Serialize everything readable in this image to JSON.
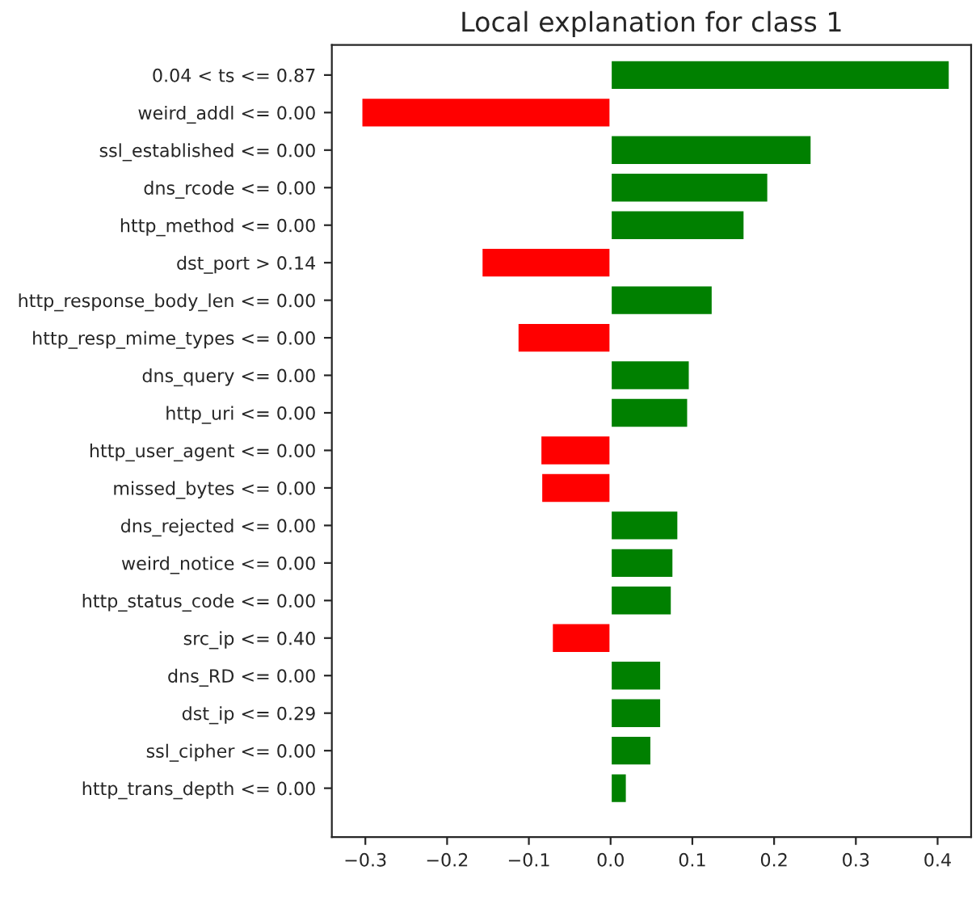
{
  "chart_data": {
    "type": "bar",
    "orientation": "horizontal",
    "title": "Local explanation for class 1",
    "categories": [
      "0.04 < ts <= 0.87",
      "weird_addl <= 0.00",
      "ssl_established <= 0.00",
      "dns_rcode <= 0.00",
      "http_method <= 0.00",
      "dst_port > 0.14",
      "http_response_body_len <= 0.00",
      "http_resp_mime_types <= 0.00",
      "dns_query <= 0.00",
      "http_uri <= 0.00",
      "http_user_agent <= 0.00",
      "missed_bytes <= 0.00",
      "dns_rejected <= 0.00",
      "weird_notice <= 0.00",
      "http_status_code <= 0.00",
      "src_ip <= 0.40",
      "dns_RD <= 0.00",
      "dst_ip <= 0.29",
      "ssl_cipher <= 0.00",
      "http_trans_depth <= 0.00"
    ],
    "values": [
      0.415,
      -0.305,
      0.246,
      0.193,
      0.164,
      -0.158,
      0.125,
      -0.114,
      0.097,
      0.095,
      -0.086,
      -0.085,
      0.083,
      0.077,
      0.075,
      -0.072,
      0.062,
      0.062,
      0.05,
      0.02
    ],
    "colors": [
      "#008000",
      "#ff0000",
      "#008000",
      "#008000",
      "#008000",
      "#ff0000",
      "#008000",
      "#ff0000",
      "#008000",
      "#008000",
      "#ff0000",
      "#ff0000",
      "#008000",
      "#008000",
      "#008000",
      "#ff0000",
      "#008000",
      "#008000",
      "#008000",
      "#008000"
    ],
    "xlim": [
      -0.341,
      0.441
    ],
    "xticks": [
      {
        "value": -0.3,
        "label": "−0.3"
      },
      {
        "value": -0.2,
        "label": "−0.2"
      },
      {
        "value": -0.1,
        "label": "−0.1"
      },
      {
        "value": 0.0,
        "label": "0.0"
      },
      0.1,
      0.2,
      0.3,
      0.4
    ],
    "grid": false
  }
}
